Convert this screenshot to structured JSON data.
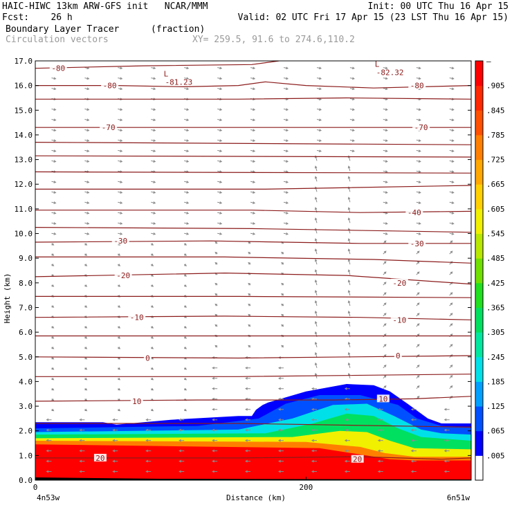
{
  "header": {
    "line1_left": "HAIC-HIWC 13km ARW-GFS init   NCAR/MMM",
    "line1_right": "Init: 00 UTC Thu 16 Apr 15",
    "line2_left": "Fcst:    26 h",
    "line2_right": "Valid: 02 UTC Fri 17 Apr 15 (23 LST Thu 16 Apr 15)",
    "field_name": "Boundary Layer Tracer",
    "field_units": "(fraction)",
    "vectors_label": "Circulation vectors",
    "xy_label": "XY= 259.5, 91.6 to 274.6,110.2"
  },
  "chart_data": {
    "type": "heatmap",
    "title": "Boundary Layer Tracer",
    "units": "(fraction)",
    "ylabel": "Height (km)",
    "xlabel": "Distance (km)",
    "ylim": [
      0,
      17
    ],
    "xlim": [
      0,
      322
    ],
    "yticks": [
      "0.0",
      "1.0",
      "2.0",
      "3.0",
      "4.0",
      "5.0",
      "6.0",
      "7.0",
      "8.0",
      "9.0",
      "10.0",
      "11.0",
      "12.0",
      "13.0",
      "14.0",
      "15.0",
      "16.0",
      "17.0"
    ],
    "xticks": [
      {
        "value": 0,
        "label": "0"
      },
      {
        "value": 200,
        "label": "200"
      }
    ],
    "x_endpoint_labels": {
      "left": "4n53w",
      "right": "6n51w"
    },
    "colorbar": {
      "labels": [
        ".005",
        ".065",
        ".125",
        ".185",
        ".245",
        ".305",
        ".365",
        ".425",
        ".485",
        ".545",
        ".605",
        ".665",
        ".725",
        ".785",
        ".845",
        ".905"
      ],
      "top_label": "–",
      "colors": [
        "#ffffff",
        "#0000ff",
        "#0050ff",
        "#00a0ff",
        "#00e0e8",
        "#00e8a0",
        "#00e060",
        "#20e020",
        "#70e000",
        "#b8e800",
        "#f0f000",
        "#ffd000",
        "#ffa800",
        "#ff8000",
        "#ff5000",
        "#ff2800",
        "#ff0000"
      ]
    },
    "tracer_layers": [
      {
        "value": 0.02,
        "top": [
          [
            0,
            2.35
          ],
          [
            50,
            2.35
          ],
          [
            60,
            2.25
          ],
          [
            100,
            2.45
          ],
          [
            150,
            2.6
          ],
          [
            160,
            2.6
          ],
          [
            163,
            2.85
          ],
          [
            168,
            3.05
          ],
          [
            172,
            3.15
          ],
          [
            200,
            3.6
          ],
          [
            230,
            3.9
          ],
          [
            250,
            3.85
          ],
          [
            262,
            3.6
          ],
          [
            275,
            3.1
          ],
          [
            290,
            2.5
          ],
          [
            300,
            2.3
          ],
          [
            322,
            2.3
          ]
        ]
      },
      {
        "value": 0.1,
        "top": [
          [
            0,
            2.1
          ],
          [
            120,
            2.2
          ],
          [
            165,
            2.5
          ],
          [
            185,
            3.1
          ],
          [
            210,
            3.45
          ],
          [
            240,
            3.45
          ],
          [
            268,
            3.05
          ],
          [
            282,
            2.5
          ],
          [
            300,
            2.2
          ],
          [
            322,
            2.15
          ]
        ]
      },
      {
        "value": 0.2,
        "top": [
          [
            0,
            1.95
          ],
          [
            150,
            2.05
          ],
          [
            190,
            2.5
          ],
          [
            220,
            3.05
          ],
          [
            245,
            3.1
          ],
          [
            265,
            2.6
          ],
          [
            285,
            2.05
          ],
          [
            300,
            1.9
          ],
          [
            322,
            1.85
          ]
        ]
      },
      {
        "value": 0.35,
        "top": [
          [
            0,
            1.85
          ],
          [
            170,
            1.9
          ],
          [
            205,
            2.3
          ],
          [
            230,
            2.7
          ],
          [
            250,
            2.6
          ],
          [
            268,
            2.1
          ],
          [
            285,
            1.75
          ],
          [
            322,
            1.6
          ]
        ]
      },
      {
        "value": 0.55,
        "top": [
          [
            0,
            1.7
          ],
          [
            190,
            1.75
          ],
          [
            225,
            2.0
          ],
          [
            245,
            1.95
          ],
          [
            262,
            1.6
          ],
          [
            280,
            1.3
          ],
          [
            322,
            1.25
          ]
        ]
      },
      {
        "value": 0.75,
        "top": [
          [
            0,
            1.6
          ],
          [
            200,
            1.55
          ],
          [
            240,
            1.35
          ],
          [
            258,
            1.1
          ],
          [
            280,
            0.95
          ],
          [
            322,
            0.95
          ]
        ]
      },
      {
        "value": 0.95,
        "top": [
          [
            0,
            1.45
          ],
          [
            210,
            1.3
          ],
          [
            245,
            1.0
          ],
          [
            262,
            0.85
          ],
          [
            280,
            0.8
          ],
          [
            322,
            0.8
          ]
        ]
      }
    ],
    "contours": [
      {
        "value": -80,
        "points": [
          [
            0,
            16.7
          ],
          [
            80,
            16.8
          ],
          [
            160,
            16.85
          ],
          [
            180,
            17.0
          ]
        ]
      },
      {
        "value": -80,
        "points": [
          [
            0,
            16.0
          ],
          [
            60,
            16.0
          ],
          [
            110,
            15.95
          ],
          [
            150,
            16.0
          ],
          [
            170,
            16.15
          ],
          [
            200,
            16.0
          ],
          [
            250,
            15.9
          ],
          [
            322,
            16.0
          ]
        ]
      },
      {
        "value": null,
        "points": [
          [
            0,
            15.45
          ],
          [
            150,
            15.45
          ],
          [
            230,
            15.5
          ],
          [
            322,
            15.45
          ]
        ]
      },
      {
        "value": -70,
        "points": [
          [
            0,
            14.3
          ],
          [
            150,
            14.3
          ],
          [
            322,
            14.3
          ]
        ]
      },
      {
        "value": null,
        "points": [
          [
            0,
            13.7
          ],
          [
            322,
            13.6
          ]
        ]
      },
      {
        "value": null,
        "points": [
          [
            0,
            13.15
          ],
          [
            322,
            13.1
          ]
        ]
      },
      {
        "value": null,
        "points": [
          [
            0,
            12.5
          ],
          [
            322,
            12.45
          ]
        ]
      },
      {
        "value": null,
        "points": [
          [
            0,
            11.8
          ],
          [
            170,
            11.8
          ],
          [
            322,
            11.95
          ]
        ]
      },
      {
        "value": -40,
        "points": [
          [
            0,
            10.95
          ],
          [
            160,
            10.95
          ],
          [
            240,
            10.85
          ],
          [
            322,
            10.9
          ]
        ]
      },
      {
        "value": null,
        "points": [
          [
            0,
            10.25
          ],
          [
            160,
            10.2
          ],
          [
            322,
            10.05
          ]
        ]
      },
      {
        "value": -30,
        "points": [
          [
            0,
            9.65
          ],
          [
            130,
            9.7
          ],
          [
            240,
            9.6
          ],
          [
            322,
            9.6
          ]
        ]
      },
      {
        "value": null,
        "points": [
          [
            0,
            9.05
          ],
          [
            140,
            9.05
          ],
          [
            250,
            8.95
          ],
          [
            322,
            8.8
          ]
        ]
      },
      {
        "value": -20,
        "points": [
          [
            0,
            8.25
          ],
          [
            140,
            8.4
          ],
          [
            230,
            8.3
          ],
          [
            322,
            7.95
          ]
        ]
      },
      {
        "value": null,
        "points": [
          [
            0,
            7.45
          ],
          [
            150,
            7.45
          ],
          [
            322,
            7.4
          ]
        ]
      },
      {
        "value": -10,
        "points": [
          [
            0,
            6.6
          ],
          [
            140,
            6.65
          ],
          [
            240,
            6.6
          ],
          [
            322,
            6.5
          ]
        ]
      },
      {
        "value": null,
        "points": [
          [
            0,
            5.85
          ],
          [
            322,
            5.85
          ]
        ]
      },
      {
        "value": 0,
        "points": [
          [
            0,
            5.0
          ],
          [
            150,
            4.95
          ],
          [
            322,
            5.05
          ]
        ]
      },
      {
        "value": null,
        "points": [
          [
            0,
            4.2
          ],
          [
            150,
            4.2
          ],
          [
            322,
            4.3
          ]
        ]
      },
      {
        "value": 10,
        "points": [
          [
            0,
            3.2
          ],
          [
            120,
            3.25
          ],
          [
            220,
            3.25
          ],
          [
            280,
            3.3
          ],
          [
            322,
            3.4
          ]
        ]
      },
      {
        "value": null,
        "points": [
          [
            0,
            2.3
          ],
          [
            150,
            2.3
          ],
          [
            322,
            2.15
          ]
        ]
      },
      {
        "value": 20,
        "points": [
          [
            0,
            0.9
          ],
          [
            150,
            0.9
          ],
          [
            240,
            0.95
          ],
          [
            300,
            0.85
          ],
          [
            322,
            0.9
          ]
        ]
      }
    ],
    "contour_labels": [
      {
        "text": "-80",
        "x": 17,
        "y": 16.7
      },
      {
        "text": "-80",
        "x": 55,
        "y": 16.0
      },
      {
        "text": "-80",
        "x": 282,
        "y": 16.0
      },
      {
        "text": "-70",
        "x": 54,
        "y": 14.3
      },
      {
        "text": "-70",
        "x": 285,
        "y": 14.3
      },
      {
        "text": "-40",
        "x": 280,
        "y": 10.85
      },
      {
        "text": "-30",
        "x": 63,
        "y": 9.7
      },
      {
        "text": "-30",
        "x": 282,
        "y": 9.6
      },
      {
        "text": "-20",
        "x": 65,
        "y": 8.3
      },
      {
        "text": "-20",
        "x": 269,
        "y": 8.0
      },
      {
        "text": "-10",
        "x": 75,
        "y": 6.6
      },
      {
        "text": "-10",
        "x": 269,
        "y": 6.5
      },
      {
        "text": "0",
        "x": 83,
        "y": 4.95
      },
      {
        "text": "0",
        "x": 268,
        "y": 5.05
      },
      {
        "text": "10",
        "x": 75,
        "y": 3.2
      },
      {
        "text": "10",
        "x": 257,
        "y": 3.3
      },
      {
        "text": "20",
        "x": 48,
        "y": 0.9
      },
      {
        "text": "20",
        "x": 238,
        "y": 0.85
      }
    ],
    "extrema": [
      {
        "mark": "L",
        "value": "-81.23",
        "x": 102,
        "y": 16.2
      },
      {
        "mark": "L",
        "value": "-82.32",
        "x": 258,
        "y": 16.6
      }
    ]
  }
}
